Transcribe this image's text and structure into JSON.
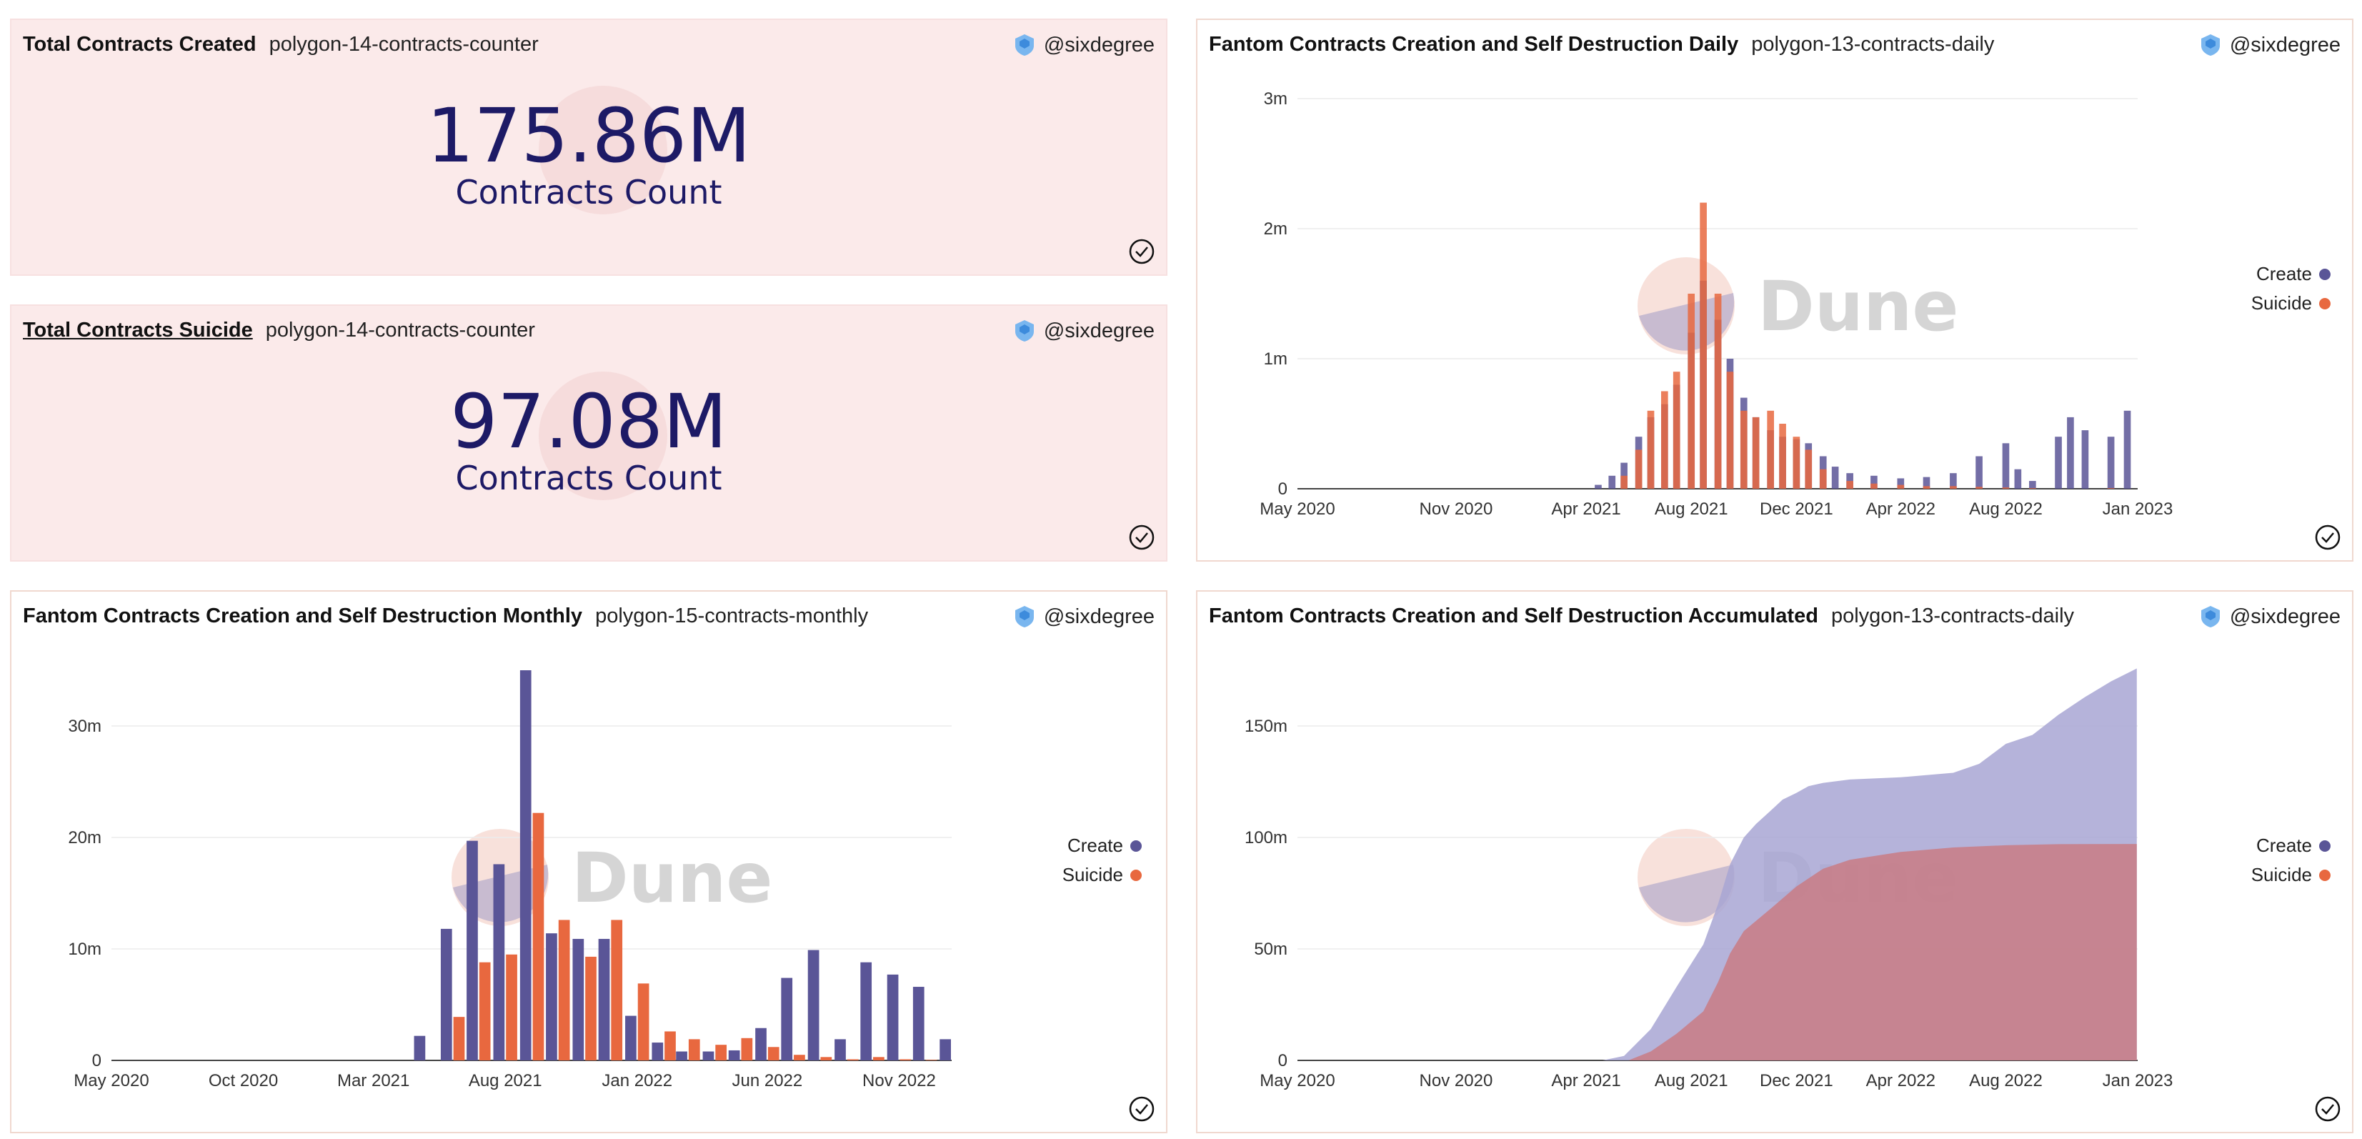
{
  "author": "@sixdegree",
  "watermark": "Dune",
  "colors": {
    "create": "#5a5597",
    "suicide": "#e8683f",
    "grid": "#ececec",
    "axis": "#333333"
  },
  "panels": {
    "created": {
      "title": "Total Contracts Created",
      "query": "polygon-14-contracts-counter",
      "value": "175.86M",
      "label": "Contracts Count"
    },
    "suicide": {
      "title": "Total Contracts Suicide",
      "query": "polygon-14-contracts-counter",
      "value": "97.08M",
      "label": "Contracts Count"
    },
    "daily": {
      "title": "Fantom Contracts Creation and Self Destruction Daily",
      "query": "polygon-13-contracts-daily"
    },
    "monthly": {
      "title": "Fantom Contracts Creation and Self Destruction Monthly",
      "query": "polygon-15-contracts-monthly"
    },
    "accumulated": {
      "title": "Fantom Contracts Creation and Self Destruction Accumulated",
      "query": "polygon-13-contracts-daily"
    }
  },
  "legend": {
    "create": "Create",
    "suicide": "Suicide"
  },
  "chart_data": [
    {
      "id": "daily",
      "type": "bar",
      "x_range": [
        "2020-05-01",
        "2023-01-01"
      ],
      "x_ticks": [
        "May 2020",
        "Nov 2020",
        "Apr 2021",
        "Aug 2021",
        "Dec 2021",
        "Apr 2022",
        "Aug 2022",
        "Jan 2023"
      ],
      "y_ticks": [
        "0",
        "1m",
        "2m",
        "3m"
      ],
      "ylim": [
        0,
        3000000
      ],
      "legend_position": "right",
      "series": [
        {
          "name": "Create",
          "points": [
            [
              "2021-04-15",
              30000
            ],
            [
              "2021-05-01",
              100000
            ],
            [
              "2021-05-15",
              200000
            ],
            [
              "2021-06-01",
              400000
            ],
            [
              "2021-06-15",
              550000
            ],
            [
              "2021-07-01",
              650000
            ],
            [
              "2021-07-15",
              800000
            ],
            [
              "2021-08-01",
              1200000
            ],
            [
              "2021-08-15",
              1600000
            ],
            [
              "2021-09-01",
              1300000
            ],
            [
              "2021-09-15",
              1000000
            ],
            [
              "2021-10-01",
              700000
            ],
            [
              "2021-10-15",
              550000
            ],
            [
              "2021-11-01",
              450000
            ],
            [
              "2021-11-15",
              400000
            ],
            [
              "2021-12-01",
              380000
            ],
            [
              "2021-12-15",
              350000
            ],
            [
              "2022-01-01",
              250000
            ],
            [
              "2022-01-15",
              170000
            ],
            [
              "2022-02-01",
              120000
            ],
            [
              "2022-03-01",
              100000
            ],
            [
              "2022-04-01",
              80000
            ],
            [
              "2022-05-01",
              90000
            ],
            [
              "2022-06-01",
              120000
            ],
            [
              "2022-07-01",
              250000
            ],
            [
              "2022-08-01",
              350000
            ],
            [
              "2022-08-15",
              150000
            ],
            [
              "2022-09-01",
              60000
            ],
            [
              "2022-10-01",
              400000
            ],
            [
              "2022-10-15",
              550000
            ],
            [
              "2022-11-01",
              450000
            ],
            [
              "2022-12-01",
              400000
            ],
            [
              "2022-12-20",
              600000
            ]
          ]
        },
        {
          "name": "Suicide",
          "points": [
            [
              "2021-05-15",
              100000
            ],
            [
              "2021-06-01",
              300000
            ],
            [
              "2021-06-15",
              600000
            ],
            [
              "2021-07-01",
              750000
            ],
            [
              "2021-07-15",
              900000
            ],
            [
              "2021-08-01",
              1500000
            ],
            [
              "2021-08-15",
              2200000
            ],
            [
              "2021-09-01",
              1500000
            ],
            [
              "2021-09-15",
              900000
            ],
            [
              "2021-10-01",
              600000
            ],
            [
              "2021-10-15",
              550000
            ],
            [
              "2021-11-01",
              600000
            ],
            [
              "2021-11-15",
              500000
            ],
            [
              "2021-12-01",
              400000
            ],
            [
              "2021-12-15",
              300000
            ],
            [
              "2022-01-01",
              150000
            ],
            [
              "2022-02-01",
              60000
            ],
            [
              "2022-03-01",
              40000
            ],
            [
              "2022-04-01",
              30000
            ],
            [
              "2022-05-01",
              20000
            ],
            [
              "2022-06-01",
              20000
            ],
            [
              "2022-07-01",
              15000
            ],
            [
              "2022-08-01",
              10000
            ],
            [
              "2022-09-01",
              5000
            ],
            [
              "2022-12-01",
              5000
            ]
          ]
        }
      ]
    },
    {
      "id": "monthly",
      "type": "bar",
      "x_range": [
        "2020-05-01",
        "2023-01-01"
      ],
      "x_ticks": [
        "May 2020",
        "Oct 2020",
        "Mar 2021",
        "Aug 2021",
        "Jan 2022",
        "Jun 2022",
        "Nov 2022"
      ],
      "y_ticks": [
        "0",
        "10m",
        "20m",
        "30m"
      ],
      "ylim": [
        0,
        35000000
      ],
      "legend_position": "right",
      "series": [
        {
          "name": "Create",
          "points": [
            [
              "2021-05-01",
              2200000
            ],
            [
              "2021-06-01",
              11800000
            ],
            [
              "2021-07-01",
              19700000
            ],
            [
              "2021-08-01",
              17600000
            ],
            [
              "2021-09-01",
              35000000
            ],
            [
              "2021-10-01",
              11400000
            ],
            [
              "2021-11-01",
              10900000
            ],
            [
              "2021-12-01",
              10900000
            ],
            [
              "2022-01-01",
              4000000
            ],
            [
              "2022-02-01",
              1600000
            ],
            [
              "2022-03-01",
              800000
            ],
            [
              "2022-04-01",
              800000
            ],
            [
              "2022-05-01",
              900000
            ],
            [
              "2022-06-01",
              2900000
            ],
            [
              "2022-07-01",
              7400000
            ],
            [
              "2022-08-01",
              9900000
            ],
            [
              "2022-09-01",
              1900000
            ],
            [
              "2022-10-01",
              8800000
            ],
            [
              "2022-11-01",
              7700000
            ],
            [
              "2022-12-01",
              6600000
            ],
            [
              "2023-01-01",
              1900000
            ]
          ]
        },
        {
          "name": "Suicide",
          "points": [
            [
              "2021-06-01",
              3900000
            ],
            [
              "2021-07-01",
              8800000
            ],
            [
              "2021-08-01",
              9500000
            ],
            [
              "2021-09-01",
              22200000
            ],
            [
              "2021-10-01",
              12600000
            ],
            [
              "2021-11-01",
              9300000
            ],
            [
              "2021-12-01",
              12600000
            ],
            [
              "2022-01-01",
              6900000
            ],
            [
              "2022-02-01",
              2600000
            ],
            [
              "2022-03-01",
              1900000
            ],
            [
              "2022-04-01",
              1400000
            ],
            [
              "2022-05-01",
              2000000
            ],
            [
              "2022-06-01",
              1200000
            ],
            [
              "2022-07-01",
              500000
            ],
            [
              "2022-08-01",
              300000
            ],
            [
              "2022-09-01",
              100000
            ],
            [
              "2022-10-01",
              300000
            ],
            [
              "2022-11-01",
              100000
            ],
            [
              "2022-12-01",
              50000
            ]
          ]
        }
      ]
    },
    {
      "id": "accumulated",
      "type": "area",
      "x_range": [
        "2020-05-01",
        "2023-01-01"
      ],
      "x_ticks": [
        "May 2020",
        "Nov 2020",
        "Apr 2021",
        "Aug 2021",
        "Dec 2021",
        "Apr 2022",
        "Aug 2022",
        "Jan 2023"
      ],
      "y_ticks": [
        "0",
        "50m",
        "100m",
        "150m"
      ],
      "ylim": [
        0,
        175000000
      ],
      "legend_position": "right",
      "series": [
        {
          "name": "Create",
          "points": [
            [
              "2020-05-01",
              0
            ],
            [
              "2021-04-20",
              0
            ],
            [
              "2021-05-15",
              2000000
            ],
            [
              "2021-06-15",
              14000000
            ],
            [
              "2021-07-15",
              33000000
            ],
            [
              "2021-08-15",
              52000000
            ],
            [
              "2021-09-01",
              70000000
            ],
            [
              "2021-09-15",
              88000000
            ],
            [
              "2021-10-01",
              100000000
            ],
            [
              "2021-10-15",
              106000000
            ],
            [
              "2021-11-01",
              112000000
            ],
            [
              "2021-11-15",
              117000000
            ],
            [
              "2021-12-01",
              120000000
            ],
            [
              "2021-12-15",
              123000000
            ],
            [
              "2022-01-01",
              124500000
            ],
            [
              "2022-02-01",
              126000000
            ],
            [
              "2022-04-01",
              127000000
            ],
            [
              "2022-06-01",
              129000000
            ],
            [
              "2022-07-01",
              133000000
            ],
            [
              "2022-08-01",
              142000000
            ],
            [
              "2022-09-01",
              146000000
            ],
            [
              "2022-10-01",
              155000000
            ],
            [
              "2022-11-01",
              163000000
            ],
            [
              "2022-12-01",
              170000000
            ],
            [
              "2022-12-31",
              175800000
            ]
          ]
        },
        {
          "name": "Suicide",
          "points": [
            [
              "2020-05-01",
              0
            ],
            [
              "2021-05-20",
              0
            ],
            [
              "2021-06-15",
              4000000
            ],
            [
              "2021-07-15",
              12000000
            ],
            [
              "2021-08-15",
              22000000
            ],
            [
              "2021-09-01",
              35000000
            ],
            [
              "2021-09-15",
              48000000
            ],
            [
              "2021-10-01",
              58000000
            ],
            [
              "2021-11-01",
              68000000
            ],
            [
              "2021-12-01",
              78000000
            ],
            [
              "2022-01-01",
              86000000
            ],
            [
              "2022-02-01",
              90000000
            ],
            [
              "2022-04-01",
              93500000
            ],
            [
              "2022-06-01",
              95500000
            ],
            [
              "2022-08-01",
              96500000
            ],
            [
              "2022-10-01",
              97000000
            ],
            [
              "2022-12-31",
              97080000
            ]
          ]
        }
      ]
    }
  ]
}
